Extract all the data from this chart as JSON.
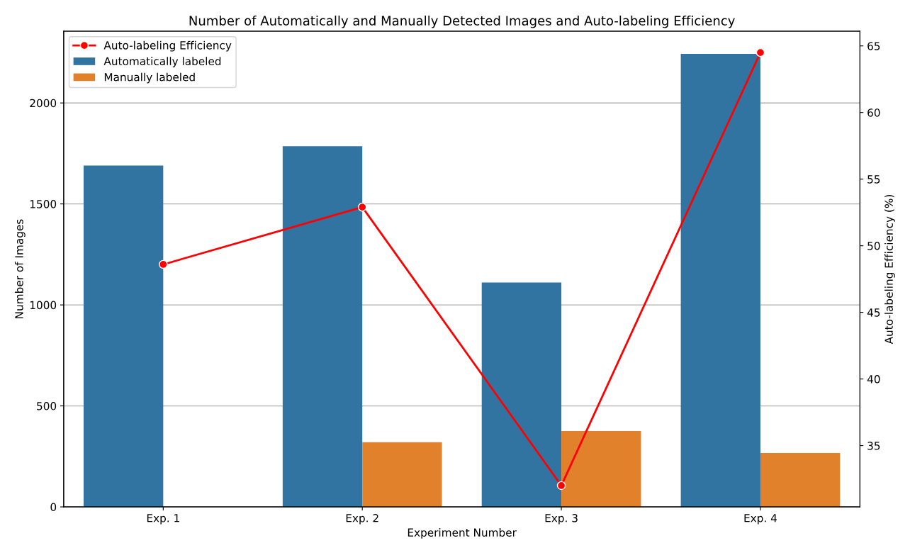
{
  "chart_data": {
    "type": "bar",
    "title": "Number of Automatically and Manually Detected Images and Auto-labeling Efficiency",
    "xlabel": "Experiment Number",
    "ylabel": "Number of Images",
    "y2label": "Auto-labeling Efficiency (%)",
    "categories": [
      "Exp. 1",
      "Exp. 2",
      "Exp. 3",
      "Exp. 4"
    ],
    "series": [
      {
        "name": "Automatically labeled",
        "color": "#3274a1",
        "values": [
          1690,
          1786,
          1111,
          2243
        ]
      },
      {
        "name": "Manually labeled",
        "color": "#e1812c",
        "values": [
          null,
          320,
          376,
          267
        ]
      },
      {
        "name": "Auto-labeling Efficiency",
        "type": "line",
        "axis": "y2",
        "color": "#ff0000",
        "values": [
          48.6,
          52.9,
          32.0,
          64.5
        ],
        "marker": "circle",
        "line_style": "solid"
      }
    ],
    "ylim": [
      0,
      2355
    ],
    "yticks": [
      0,
      500,
      1000,
      1500,
      2000
    ],
    "y2lim": [
      30.4,
      66.1
    ],
    "y2ticks": [
      35,
      40,
      45,
      50,
      55,
      60,
      65
    ],
    "grid": "y",
    "legend": "top left"
  }
}
